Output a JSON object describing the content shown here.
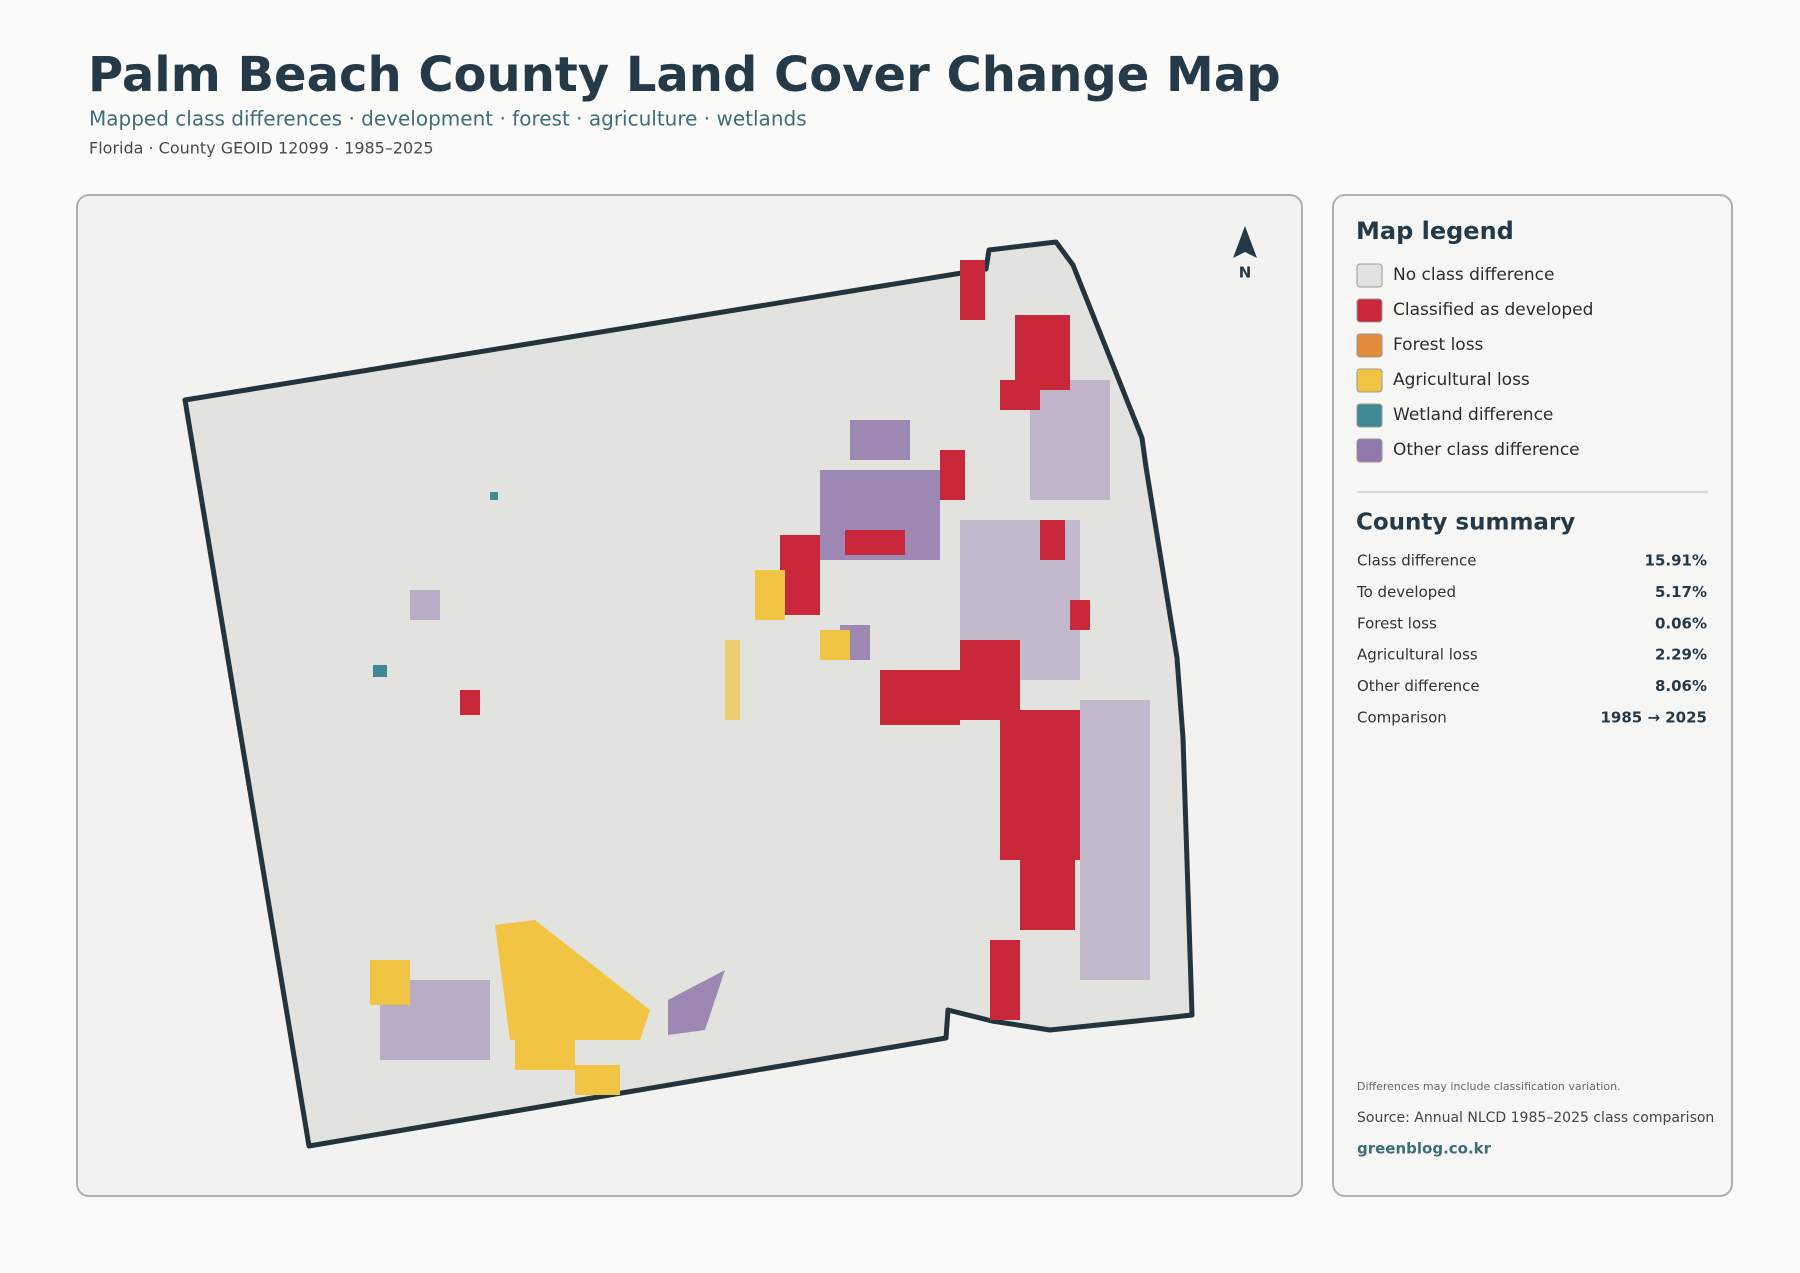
{
  "header": {
    "title": "Palm Beach County Land Cover Change Map",
    "subtitle": "Mapped class differences · development · forest · agriculture · wetlands",
    "meta": "Florida · County GEOID 12099 · 1985–2025"
  },
  "map": {
    "north": "N"
  },
  "legend": {
    "title": "Map legend",
    "items": [
      {
        "label": "No class difference",
        "color": "#e2e2df"
      },
      {
        "label": "Classified as developed",
        "color": "#c9283a"
      },
      {
        "label": "Forest loss",
        "color": "#e08c3c"
      },
      {
        "label": "Agricultural loss",
        "color": "#f2c443"
      },
      {
        "label": "Wetland difference",
        "color": "#3f8a94"
      },
      {
        "label": "Other class difference",
        "color": "#9178ad"
      }
    ]
  },
  "summary": {
    "title": "County summary",
    "rows": [
      [
        "Class difference",
        "15.91%"
      ],
      [
        "To developed",
        "5.17%"
      ],
      [
        "Forest loss",
        "0.06%"
      ],
      [
        "Agricultural loss",
        "2.29%"
      ],
      [
        "Other difference",
        "8.06%"
      ],
      [
        "Comparison",
        "1985 → 2025"
      ]
    ]
  },
  "notes": {
    "caveat": "Differences may include classification variation.",
    "source": "Source: Annual NLCD 1985–2025 class comparison",
    "site": "greenblog.co.kr"
  }
}
